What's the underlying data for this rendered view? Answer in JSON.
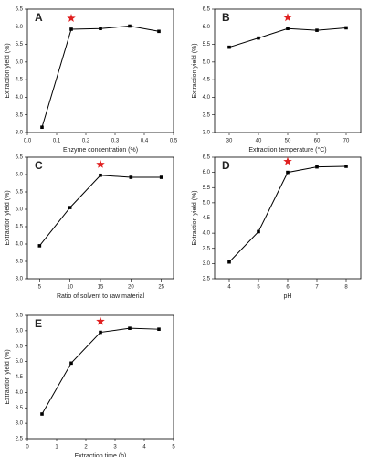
{
  "chart_data": [
    {
      "type": "line",
      "label": "A",
      "xlabel": "Enzyme concentration (%)",
      "ylabel": "Extraction yield (%)",
      "x": [
        0.05,
        0.15,
        0.25,
        0.35,
        0.45
      ],
      "series": [
        {
          "name": "Extraction yield",
          "color": "#000000",
          "values": [
            3.15,
            5.93,
            5.95,
            6.02,
            5.87
          ]
        }
      ],
      "highlight_x": 0.15,
      "xlim": [
        0,
        0.5
      ],
      "xticks": [
        {
          "value": 0,
          "label": "0.0"
        },
        0.1,
        0.2,
        0.3,
        0.4,
        0.5
      ],
      "ylim": [
        3,
        6.5
      ],
      "yticks": [
        {
          "value": 3,
          "label": "3.0"
        },
        3.5,
        {
          "value": 4,
          "label": "4.0"
        },
        4.5,
        {
          "value": 5,
          "label": "5.0"
        },
        5.5,
        {
          "value": 6,
          "label": "6.0"
        },
        6.5
      ]
    },
    {
      "type": "line",
      "label": "B",
      "xlabel": "Extraction temperature (°C)",
      "ylabel": "Extraction yield (%)",
      "x": [
        30,
        40,
        50,
        60,
        70
      ],
      "series": [
        {
          "name": "Extraction yield",
          "color": "#000000",
          "values": [
            5.42,
            5.68,
            5.95,
            5.9,
            5.97
          ]
        }
      ],
      "highlight_x": 50,
      "xlim": [
        25,
        75
      ],
      "xticks": [
        30,
        40,
        50,
        60,
        70
      ],
      "ylim": [
        3,
        6.5
      ],
      "yticks": [
        {
          "value": 3,
          "label": "3.0"
        },
        3.5,
        {
          "value": 4,
          "label": "4.0"
        },
        4.5,
        {
          "value": 5,
          "label": "5.0"
        },
        5.5,
        {
          "value": 6,
          "label": "6.0"
        },
        6.5
      ]
    },
    {
      "type": "line",
      "label": "C",
      "xlabel": "Ratio of  solvent to raw material",
      "ylabel": "Extraction yield (%)",
      "x": [
        5,
        10,
        15,
        20,
        25
      ],
      "series": [
        {
          "name": "Extraction yield",
          "color": "#000000",
          "values": [
            3.95,
            5.05,
            5.98,
            5.92,
            5.92
          ]
        }
      ],
      "highlight_x": 15,
      "xlim": [
        3,
        27
      ],
      "xticks": [
        5,
        10,
        15,
        20,
        25
      ],
      "ylim": [
        3,
        6.5
      ],
      "yticks": [
        {
          "value": 3,
          "label": "3.0"
        },
        3.5,
        {
          "value": 4,
          "label": "4.0"
        },
        4.5,
        {
          "value": 5,
          "label": "5.0"
        },
        5.5,
        {
          "value": 6,
          "label": "6.0"
        },
        6.5
      ]
    },
    {
      "type": "line",
      "label": "D",
      "xlabel": "pH",
      "ylabel": "Extraction yield (%)",
      "x": [
        4,
        5,
        6,
        7,
        8
      ],
      "series": [
        {
          "name": "Extraction yield",
          "color": "#000000",
          "values": [
            3.05,
            4.05,
            6.0,
            6.18,
            6.2
          ]
        }
      ],
      "highlight_x": 6,
      "xlim": [
        3.5,
        8.5
      ],
      "xticks": [
        4,
        5,
        6,
        7,
        8
      ],
      "ylim": [
        2.5,
        6.5
      ],
      "yticks": [
        2.5,
        {
          "value": 3,
          "label": "3.0"
        },
        3.5,
        {
          "value": 4,
          "label": "4.0"
        },
        4.5,
        {
          "value": 5,
          "label": "5.0"
        },
        5.5,
        {
          "value": 6,
          "label": "6.0"
        },
        6.5
      ]
    },
    {
      "type": "line",
      "label": "E",
      "xlabel": "Extraction time (h)",
      "ylabel": "Extraction yield (%)",
      "x": [
        0.5,
        1.5,
        2.5,
        3.5,
        4.5
      ],
      "series": [
        {
          "name": "Extraction yield",
          "color": "#000000",
          "values": [
            3.3,
            4.95,
            5.95,
            6.08,
            6.05
          ]
        }
      ],
      "highlight_x": 2.5,
      "xlim": [
        0,
        5
      ],
      "xticks": [
        0,
        1,
        2,
        3,
        4,
        5
      ],
      "ylim": [
        2.5,
        6.5
      ],
      "yticks": [
        2.5,
        {
          "value": 3,
          "label": "3.0"
        },
        3.5,
        {
          "value": 4,
          "label": "4.0"
        },
        4.5,
        {
          "value": 5,
          "label": "5.0"
        },
        5.5,
        {
          "value": 6,
          "label": "6.0"
        },
        6.5
      ]
    }
  ]
}
